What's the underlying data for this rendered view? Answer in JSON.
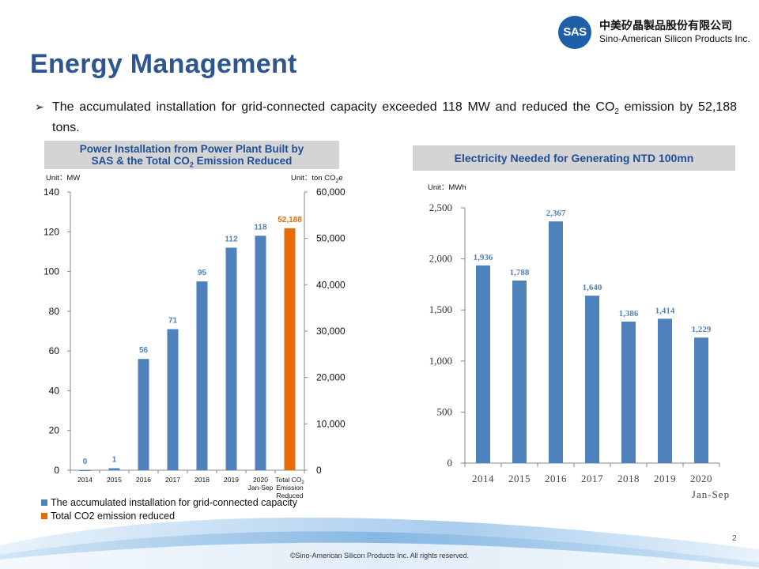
{
  "logo": {
    "mark": "SAS",
    "name_cn": "中美矽晶製品股份有限公司",
    "name_en": "Sino-American Silicon Products Inc."
  },
  "page_title": "Energy Management",
  "bullet": {
    "marker": "➢",
    "text_before": "The accumulated installation for grid-connected capacity exceeded 118 MW and reduced the CO",
    "text_sub": "2",
    "text_after": " emission by 52,188 tons."
  },
  "left_panel": {
    "header_line1": "Power Installation from Power Plant Built by",
    "header_line2_before": "SAS & the Total CO",
    "header_line2_sub": "2",
    "header_line2_after": " Emission Reduced",
    "unit_left": "Unit：MW",
    "unit_right_before": "Unit：ton CO",
    "unit_right_sub": "2",
    "unit_right_after": "e",
    "legend": [
      {
        "label": "The accumulated installation for grid-connected capacity",
        "color": "#4f81bd"
      },
      {
        "label": "Total CO2 emission reduced",
        "color": "#e46c0a"
      }
    ]
  },
  "right_panel": {
    "header": "Electricity Needed for Generating NTD 100mn",
    "unit": "Unit：MWh"
  },
  "chart_data": [
    {
      "type": "bar",
      "title": "Power Installation from Power Plant Built by SAS & the Total CO2 Emission Reduced",
      "categories": [
        [
          "2014"
        ],
        [
          "2015"
        ],
        [
          "2016"
        ],
        [
          "2017"
        ],
        [
          "2018"
        ],
        [
          "2019"
        ],
        [
          "2020",
          "Jan-Sep"
        ],
        [
          "Total CO",
          "Emission",
          "Reduced"
        ]
      ],
      "category_sub": {
        "7": "2"
      },
      "series": [
        {
          "name": "The accumulated installation for grid-connected capacity",
          "axis": "left",
          "color": "#4f81bd",
          "values": [
            0,
            1,
            56,
            71,
            95,
            112,
            118,
            null
          ],
          "labels": [
            "0",
            "1",
            "56",
            "71",
            "95",
            "112",
            "118",
            ""
          ]
        },
        {
          "name": "Total CO2 emission reduced",
          "axis": "right",
          "color": "#e46c0a",
          "values": [
            null,
            null,
            null,
            null,
            null,
            null,
            null,
            52188
          ],
          "labels": [
            "",
            "",
            "",
            "",
            "",
            "",
            "",
            "52,188"
          ]
        }
      ],
      "ylim_left": [
        0,
        140
      ],
      "yticks_left": [
        0,
        20,
        40,
        60,
        80,
        100,
        120,
        140
      ],
      "ylim_right": [
        0,
        60000
      ],
      "yticks_right": [
        "0",
        "10,000",
        "20,000",
        "30,000",
        "40,000",
        "50,000",
        "60,000"
      ],
      "ylabel_left": "Unit：MW",
      "ylabel_right": "Unit：ton CO2e",
      "grid": false,
      "legend_position": "bottom-left"
    },
    {
      "type": "bar",
      "title": "Electricity Needed for Generating NTD 100mn",
      "categories": [
        [
          "2014"
        ],
        [
          "2015"
        ],
        [
          "2016"
        ],
        [
          "2017"
        ],
        [
          "2018"
        ],
        [
          "2019"
        ],
        [
          "2020",
          "Jan-Sep"
        ]
      ],
      "series": [
        {
          "color": "#4f81bd",
          "values": [
            1936,
            1788,
            2367,
            1640,
            1386,
            1414,
            1229
          ],
          "labels": [
            "1,936",
            "1,788",
            "2,367",
            "1,640",
            "1,386",
            "1,414",
            "1,229"
          ]
        }
      ],
      "ylim": [
        0,
        2500
      ],
      "yticks": [
        "0",
        "500",
        "1,000",
        "1,500",
        "2,000",
        "2,500"
      ],
      "ylabel": "Unit：MWh",
      "grid": false
    }
  ],
  "page_number": "2",
  "footer": "©Sino-American Silicon Products Inc.  All rights reserved."
}
